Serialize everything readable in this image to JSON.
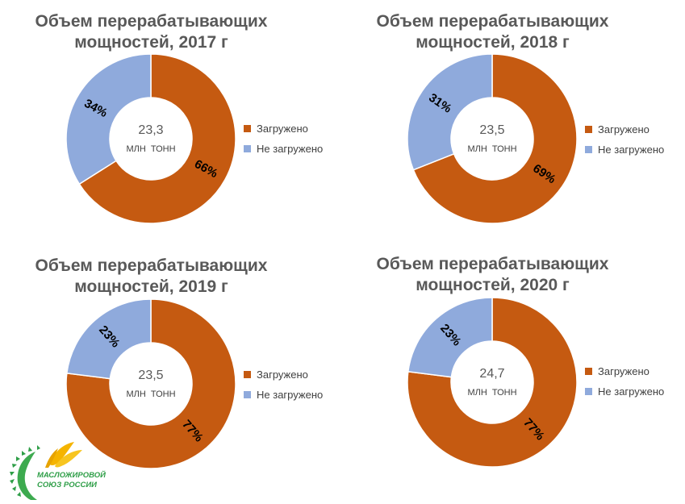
{
  "colors": {
    "loaded": "#C55A11",
    "unloaded": "#8FAADC"
  },
  "logo": {
    "line1": "МАСЛОЖИРОВОЙ",
    "line2": "СОЮЗ РОССИИ"
  },
  "chart_data": [
    {
      "type": "pie",
      "title_lines": [
        "Объем перерабатывающих",
        "мощностей, 2017 г"
      ],
      "center_value": "23,3",
      "center_unit": "МЛН  ТОНН",
      "categories": [
        "Загружено",
        "Не загружено"
      ],
      "values": [
        66,
        34
      ],
      "labels": [
        "66%",
        "34%"
      ],
      "legend": "right"
    },
    {
      "type": "pie",
      "title_lines": [
        "Объем перерабатывающих",
        "мощностей, 2018 г"
      ],
      "center_value": "23,5",
      "center_unit": "МЛН  ТОНН",
      "categories": [
        "Загружено",
        "Не загружено"
      ],
      "values": [
        69,
        31
      ],
      "labels": [
        "69%",
        "31%"
      ],
      "legend": "right"
    },
    {
      "type": "pie",
      "title_lines": [
        "Объем перерабатывающих",
        "мощностей, 2019 г"
      ],
      "center_value": "23,5",
      "center_unit": "МЛН  ТОНН",
      "categories": [
        "Загружено",
        "Не загружено"
      ],
      "values": [
        77,
        23
      ],
      "labels": [
        "77%",
        "23%"
      ],
      "legend": "right"
    },
    {
      "type": "pie",
      "title_lines": [
        "Объем перерабатывающих",
        "мощностей, 2020 г"
      ],
      "center_value": "24,7",
      "center_unit": "МЛН  ТОНН",
      "categories": [
        "Загружено",
        "Не загружено"
      ],
      "values": [
        77,
        23
      ],
      "labels": [
        "77%",
        "23%"
      ],
      "legend": "right"
    }
  ]
}
